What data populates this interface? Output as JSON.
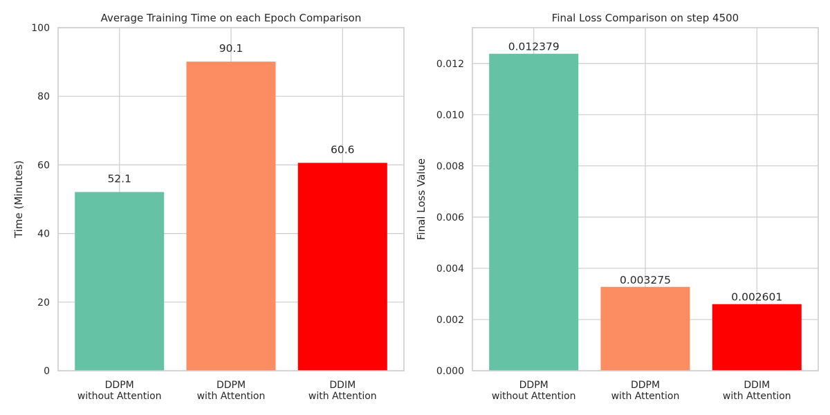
{
  "chart_data": [
    {
      "type": "bar",
      "title": "Average Training Time on each Epoch Comparison",
      "xlabel": "",
      "ylabel": "Time (Minutes)",
      "categories": [
        [
          "DDPM",
          "without Attention"
        ],
        [
          "DDPM",
          "with Attention"
        ],
        [
          "DDIM",
          "with Attention"
        ]
      ],
      "values": [
        52.1,
        90.1,
        60.6
      ],
      "value_labels": [
        "52.1",
        "90.1",
        "60.6"
      ],
      "colors": [
        "#66c2a5",
        "#fc8d62",
        "#ff0000"
      ],
      "ylim": [
        0,
        100
      ],
      "yticks": [
        0,
        20,
        40,
        60,
        80,
        100
      ],
      "ytick_labels": [
        "0",
        "20",
        "40",
        "60",
        "80",
        "100"
      ],
      "grid": true,
      "legend": "none"
    },
    {
      "type": "bar",
      "title": "Final Loss Comparison on step 4500",
      "xlabel": "",
      "ylabel": "Final Loss Value",
      "categories": [
        [
          "DDPM",
          "without Attention"
        ],
        [
          "DDPM",
          "with Attention"
        ],
        [
          "DDIM",
          "with Attention"
        ]
      ],
      "values": [
        0.012379,
        0.003275,
        0.002601
      ],
      "value_labels": [
        "0.012379",
        "0.003275",
        "0.002601"
      ],
      "colors": [
        "#66c2a5",
        "#fc8d62",
        "#ff0000"
      ],
      "ylim": [
        0,
        0.013398
      ],
      "yticks": [
        0,
        0.002,
        0.004,
        0.006,
        0.008,
        0.01,
        0.012
      ],
      "ytick_labels": [
        "0.000",
        "0.002",
        "0.004",
        "0.006",
        "0.008",
        "0.010",
        "0.012"
      ],
      "grid": true,
      "legend": "none"
    }
  ]
}
